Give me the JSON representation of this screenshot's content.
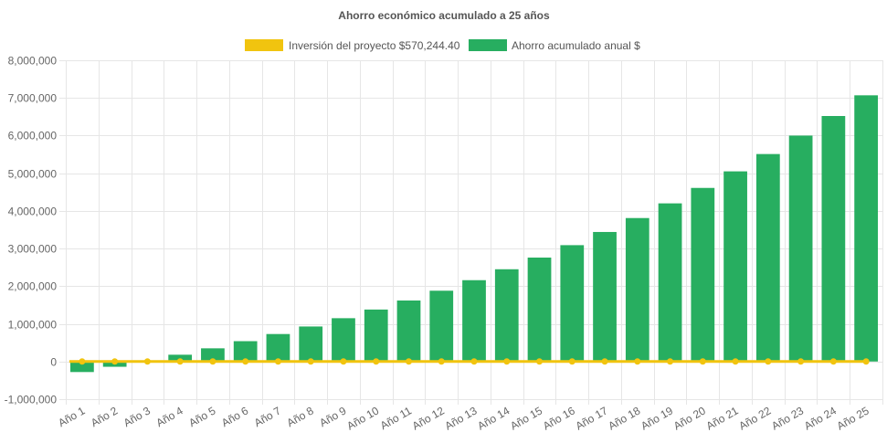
{
  "chart_data": {
    "type": "bar",
    "title": "Ahorro económico acumulado a 25 años",
    "categories": [
      "Año 1",
      "Año 2",
      "Año 3",
      "Año 4",
      "Año 5",
      "Año 6",
      "Año 7",
      "Año 8",
      "Año 9",
      "Año 10",
      "Año 11",
      "Año 12",
      "Año 13",
      "Año 14",
      "Año 15",
      "Año 16",
      "Año 17",
      "Año 18",
      "Año 19",
      "Año 20",
      "Año 21",
      "Año 22",
      "Año 23",
      "Año 24",
      "Año 25"
    ],
    "series": [
      {
        "name": "Inversión del proyecto $570,244.40",
        "type": "line",
        "color": "#f1c40f",
        "values": [
          0,
          0,
          0,
          0,
          0,
          0,
          0,
          0,
          0,
          0,
          0,
          0,
          0,
          0,
          0,
          0,
          0,
          0,
          0,
          0,
          0,
          0,
          0,
          0,
          0
        ]
      },
      {
        "name": "Ahorro acumulado anual $",
        "type": "bar",
        "color": "#27ae60",
        "values": [
          -280000,
          -140000,
          0,
          180000,
          350000,
          540000,
          730000,
          930000,
          1150000,
          1380000,
          1620000,
          1880000,
          2160000,
          2450000,
          2760000,
          3090000,
          3440000,
          3810000,
          4200000,
          4610000,
          5050000,
          5510000,
          6000000,
          6520000,
          7070000
        ]
      }
    ],
    "yticks": [
      "8,000,000",
      "7,000,000",
      "6,000,000",
      "5,000,000",
      "4,000,000",
      "3,000,000",
      "2,000,000",
      "1,000,000",
      "0",
      "-1,000,000"
    ],
    "ylim": [
      -1000000,
      8000000
    ],
    "grid": true,
    "legend_position": "top"
  }
}
